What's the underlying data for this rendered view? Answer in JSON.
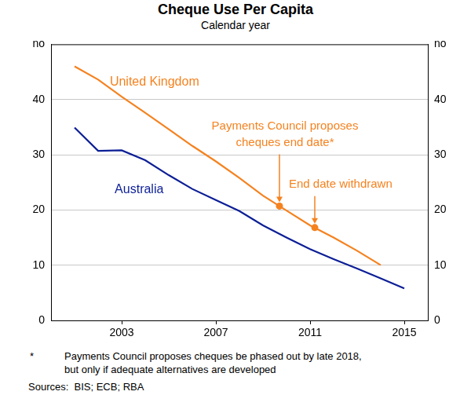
{
  "chart_data": {
    "type": "line",
    "title": "Cheque Use Per Capita",
    "subtitle": "Calendar year",
    "ylabel": "no",
    "y2label": "no",
    "xlim": [
      2000,
      2016
    ],
    "xticks": [
      2003,
      2007,
      2011,
      2015
    ],
    "ylim": [
      0,
      50
    ],
    "yticks": [
      0,
      10,
      20,
      30,
      40
    ],
    "y2lim": [
      0,
      50
    ],
    "y2ticks": [
      0,
      10,
      20,
      30,
      40
    ],
    "grid": true,
    "series": [
      {
        "name": "United Kingdom",
        "color": "#f5821f",
        "x": [
          2001,
          2002,
          2003,
          2004,
          2005,
          2006,
          2007,
          2008,
          2009,
          2010,
          2011,
          2012,
          2013,
          2014
        ],
        "values": [
          46.0,
          43.6,
          40.5,
          37.6,
          34.6,
          31.6,
          28.8,
          25.8,
          22.6,
          19.9,
          17.2,
          15.0,
          12.6,
          10.0
        ]
      },
      {
        "name": "Australia",
        "color": "#0c1f96",
        "x": [
          2001,
          2002,
          2003,
          2004,
          2005,
          2006,
          2007,
          2008,
          2009,
          2010,
          2011,
          2012,
          2013,
          2014,
          2015
        ],
        "values": [
          34.9,
          30.7,
          30.8,
          29.0,
          26.3,
          23.8,
          21.8,
          19.8,
          17.2,
          15.0,
          12.9,
          11.1,
          9.4,
          7.6,
          5.8
        ]
      }
    ],
    "annotations": [
      {
        "text": [
          "Payments Council proposes",
          "cheques end date*"
        ],
        "x": 2009.7,
        "y": 20.7
      },
      {
        "text": [
          "End date withdrawn"
        ],
        "x": 2011.2,
        "y": 16.8
      }
    ],
    "footnote": {
      "marker": "*",
      "lines": [
        "Payments Council proposes cheques be phased out by late 2018,",
        "but only if adequate alternatives are developed"
      ]
    },
    "sources": "Sources:  BIS; ECB; RBA"
  }
}
